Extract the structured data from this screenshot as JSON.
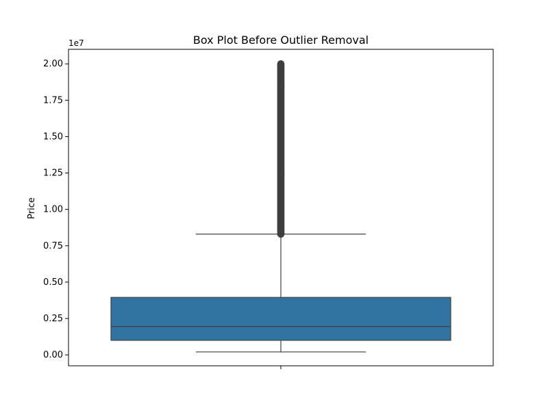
{
  "chart_data": {
    "type": "box",
    "title": "Box Plot Before Outlier Removal",
    "xlabel": "",
    "ylabel": "Price",
    "y_offset_label": "1e7",
    "y_tick_labels": [
      "0.00",
      "0.25",
      "0.50",
      "0.75",
      "1.00",
      "1.25",
      "1.50",
      "1.75",
      "2.00"
    ],
    "y_ticks": [
      0,
      2500000,
      5000000,
      7500000,
      10000000,
      12500000,
      15000000,
      17500000,
      20000000
    ],
    "ylim": [
      -750000,
      21000000
    ],
    "box": {
      "whisker_low": 200000,
      "q1": 1000000,
      "median": 1950000,
      "q3": 3950000,
      "whisker_high": 8300000,
      "outliers_from": 8300000,
      "outliers_to": 20000000
    },
    "grid": false,
    "colors": {
      "box": "#3274a1",
      "line": "#3f3f3f",
      "outlier": "#3f3f3f"
    }
  }
}
